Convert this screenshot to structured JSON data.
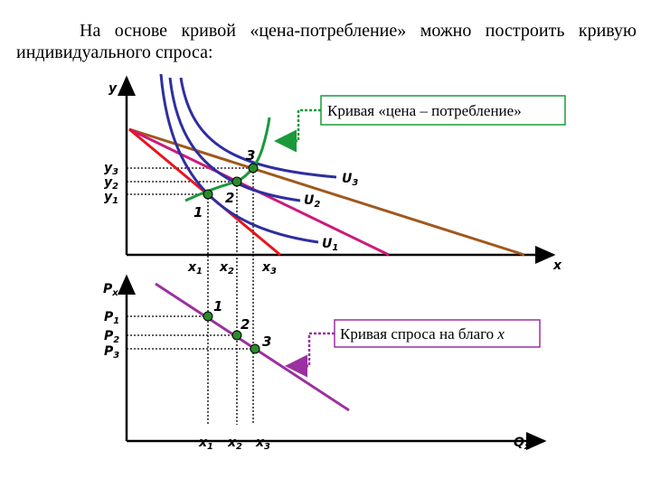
{
  "header": {
    "text": "На основе кривой «цена-потребление» можно построить кривую индивидуального спроса:"
  },
  "upper": {
    "y_axis": "y",
    "x_axis": "x",
    "y_ticks": [
      {
        "main": "y",
        "sub": "3"
      },
      {
        "main": "y",
        "sub": "2"
      },
      {
        "main": "y",
        "sub": "1"
      }
    ],
    "x_ticks": [
      {
        "main": "x",
        "sub": "1"
      },
      {
        "main": "x",
        "sub": "2"
      },
      {
        "main": "x",
        "sub": "3"
      }
    ],
    "curves": [
      {
        "main": "U",
        "sub": "3"
      },
      {
        "main": "U",
        "sub": "2"
      },
      {
        "main": "U",
        "sub": "1"
      }
    ],
    "points": [
      "1",
      "2",
      "3"
    ],
    "callout": "Кривая «цена – потребление»"
  },
  "lower": {
    "y_axis": {
      "main": "P",
      "sub": "x"
    },
    "x_axis": {
      "main": "Q",
      "sub": "x"
    },
    "y_ticks": [
      {
        "main": "P",
        "sub": "1"
      },
      {
        "main": "P",
        "sub": "2"
      },
      {
        "main": "P",
        "sub": "3"
      }
    ],
    "x_ticks": [
      {
        "main": "x",
        "sub": "1"
      },
      {
        "main": "x",
        "sub": "2"
      },
      {
        "main": "x",
        "sub": "3"
      }
    ],
    "points": [
      "1",
      "2",
      "3"
    ],
    "callout": {
      "text": "Кривая спроса на благо",
      "var": "x"
    }
  }
}
